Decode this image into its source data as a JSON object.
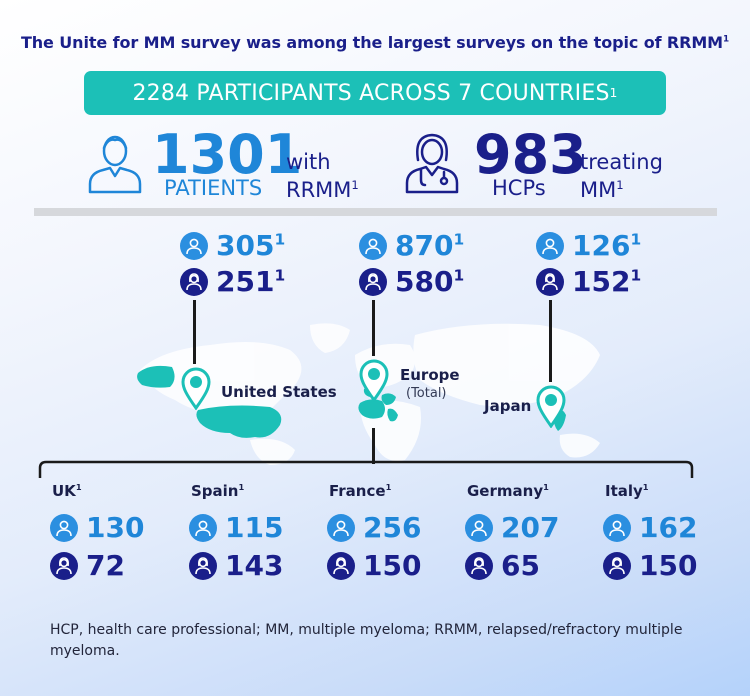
{
  "headline": {
    "text": "The Unite for MM survey was among the largest surveys on the topic of RRMM",
    "ref": "1"
  },
  "banner": {
    "text": "2284 PARTICIPANTS ACROSS 7 COUNTRIES",
    "ref": "1"
  },
  "patients": {
    "number": "1301",
    "label": "PATIENTS",
    "side_line1": "with",
    "side_line2": "RRMM",
    "ref": "1"
  },
  "hcps": {
    "number": "983",
    "label": "HCPs",
    "side_line1": "treating",
    "side_line2": "MM",
    "ref": "1"
  },
  "regions": [
    {
      "name": "United States",
      "sub": "",
      "patients": "305",
      "hcps": "251",
      "ref": "1"
    },
    {
      "name": "Europe",
      "sub": "(Total)",
      "patients": "870",
      "hcps": "580",
      "ref": "1"
    },
    {
      "name": "Japan",
      "sub": "",
      "patients": "126",
      "hcps": "152",
      "ref": "1"
    }
  ],
  "countries": [
    {
      "name": "UK",
      "ref": "1",
      "patients": "130",
      "hcps": "72"
    },
    {
      "name": "Spain",
      "ref": "1",
      "patients": "115",
      "hcps": "143"
    },
    {
      "name": "France",
      "ref": "1",
      "patients": "256",
      "hcps": "150"
    },
    {
      "name": "Germany",
      "ref": "1",
      "patients": "207",
      "hcps": "65"
    },
    {
      "name": "Italy",
      "ref": "1",
      "patients": "162",
      "hcps": "150"
    }
  ],
  "footnote": "HCP, health care professional; MM, multiple myeloma; RRMM, relapsed/refractory multiple myeloma.",
  "colors": {
    "teal": "#1cc0b7",
    "blue": "#1f86d8",
    "navy": "#1a1f8a",
    "map": "#ffffff"
  },
  "icons": {
    "patient": "patient-icon",
    "hcp": "doctor-icon",
    "pin": "map-pin-icon"
  }
}
